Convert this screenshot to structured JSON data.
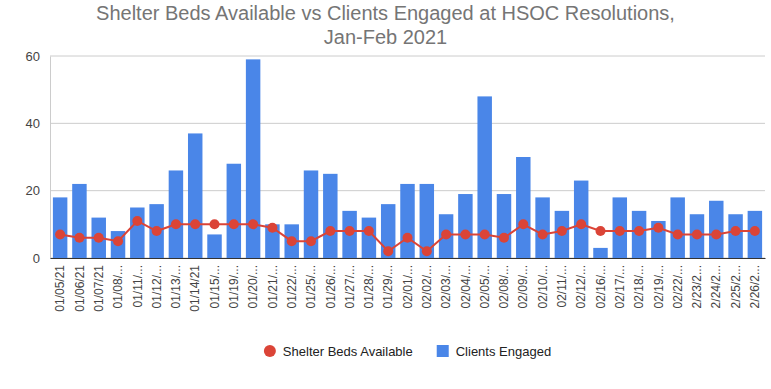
{
  "chart_data": {
    "type": "bar",
    "title": "Shelter Beds Available vs Clients Engaged at HSOC Resolutions, Jan-Feb 2021",
    "categories": [
      "01/05/21",
      "01/06/21",
      "01/07/21",
      "01/08/...",
      "01/11/...",
      "01/12/...",
      "01/13/...",
      "01/14/21",
      "01/15/...",
      "01/19/...",
      "01/20/...",
      "01/21/...",
      "01/22/...",
      "01/25/...",
      "01/26/...",
      "01/27/...",
      "01/28/...",
      "01/29/...",
      "02/01/...",
      "02/02/...",
      "02/03/...",
      "02/04/...",
      "02/05/...",
      "02/08/...",
      "02/09/...",
      "02/10/...",
      "02/11/...",
      "02/12/...",
      "02/16/...",
      "02/17/...",
      "02/18/...",
      "02/19/...",
      "02/22/...",
      "2/23/2...",
      "2/24/2...",
      "2/25/2...",
      "2/26/2..."
    ],
    "series": [
      {
        "name": "Shelter Beds Available",
        "type": "line",
        "color": "#db4437",
        "marker": "circle",
        "line_style": "solid",
        "values": [
          7,
          6,
          6,
          5,
          11,
          8,
          10,
          10,
          10,
          10,
          10,
          9,
          5,
          5,
          8,
          8,
          8,
          2,
          6,
          2,
          7,
          7,
          7,
          6,
          10,
          7,
          8,
          10,
          8,
          8,
          8,
          9,
          7,
          7,
          7,
          8,
          8
        ]
      },
      {
        "name": "Clients Engaged",
        "type": "bar",
        "color": "#4a86e8",
        "values": [
          18,
          22,
          12,
          8,
          15,
          16,
          26,
          37,
          7,
          28,
          59,
          10,
          10,
          26,
          25,
          14,
          12,
          16,
          22,
          22,
          13,
          19,
          48,
          19,
          30,
          18,
          14,
          23,
          3,
          18,
          14,
          11,
          18,
          13,
          17,
          13,
          14
        ]
      }
    ],
    "ylim": [
      0,
      60
    ],
    "yticks": [
      0,
      20,
      40,
      60
    ],
    "grid": true,
    "legend": "bottom"
  }
}
